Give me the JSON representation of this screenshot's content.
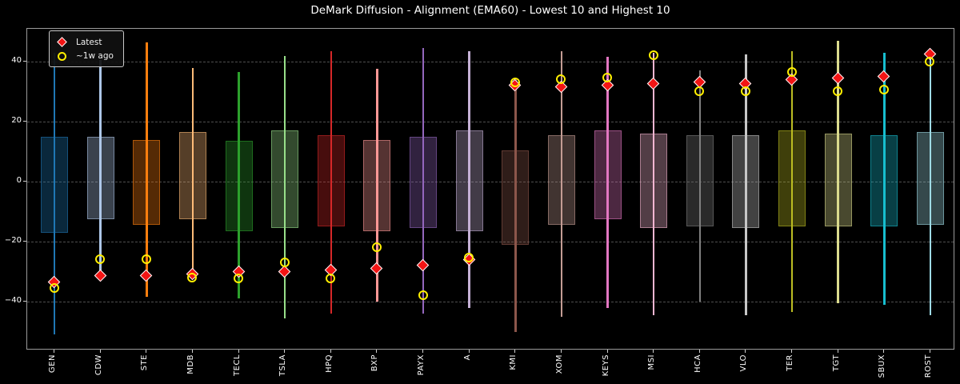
{
  "title": "DeMark Diffusion - Alignment (EMA60) - Lowest 10 and Highest 10",
  "legend": {
    "items": [
      {
        "label": "Latest",
        "marker": "red-diamond",
        "color": "#f31414"
      },
      {
        "label": "~1w ago",
        "marker": "yellow-open-circle",
        "color": "#ffef00"
      }
    ]
  },
  "colors": {
    "background": "#000000",
    "text": "#ffffff",
    "grid": "#4f4f4f",
    "spine": "#9b9b9b",
    "latest_marker": "#f31414",
    "week_ago_marker": "#ffef00"
  },
  "chart_data": {
    "type": "box",
    "subtype": "range-box-with-whiskers-and-scatter-markers",
    "title": "DeMark Diffusion - Alignment (EMA60) - Lowest 10 and Highest 10",
    "xlabel": "",
    "ylabel": "",
    "ylim": [
      -56,
      51
    ],
    "yticks": [
      40,
      20,
      0,
      -20,
      -40
    ],
    "ytick_labels": [
      "40",
      "20",
      "0",
      "−20",
      "−40"
    ],
    "grid": true,
    "legend_position": "upper-left",
    "series": [
      {
        "name": "Latest",
        "marker": "red-diamond"
      },
      {
        "name": "~1w ago",
        "marker": "yellow-open-circle"
      }
    ],
    "tickers": [
      {
        "symbol": "GEN",
        "color": "#1f77b4",
        "whisker_high": 43,
        "whisker_low": -51,
        "box_high": 15,
        "box_low": -17,
        "latest": -33.5,
        "week_ago": -35.5
      },
      {
        "symbol": "CDW",
        "color": "#aec7e8",
        "whisker_high": 40.5,
        "whisker_low": -31.5,
        "box_high": 15,
        "box_low": -12.5,
        "latest": -31.5,
        "week_ago": -26
      },
      {
        "symbol": "STE",
        "color": "#ff7f0e",
        "whisker_high": 46.5,
        "whisker_low": -38.5,
        "box_high": 14,
        "box_low": -14.5,
        "latest": -31.5,
        "week_ago": -26
      },
      {
        "symbol": "MDB",
        "color": "#ffbb78",
        "whisker_high": 38,
        "whisker_low": -32.5,
        "box_high": 16.5,
        "box_low": -12.5,
        "latest": -31,
        "week_ago": -32
      },
      {
        "symbol": "TECL",
        "color": "#2ca02c",
        "whisker_high": 36.5,
        "whisker_low": -39,
        "box_high": 13.5,
        "box_low": -16.5,
        "latest": -30,
        "week_ago": -32.5
      },
      {
        "symbol": "TSLA",
        "color": "#98df8a",
        "whisker_high": 42,
        "whisker_low": -45.5,
        "box_high": 17,
        "box_low": -15.5,
        "latest": -30,
        "week_ago": -27
      },
      {
        "symbol": "HPQ",
        "color": "#d62728",
        "whisker_high": 43.5,
        "whisker_low": -44,
        "box_high": 15.5,
        "box_low": -15,
        "latest": -29.5,
        "week_ago": -32.5
      },
      {
        "symbol": "BXP",
        "color": "#ff9896",
        "whisker_high": 37.5,
        "whisker_low": -40,
        "box_high": 14,
        "box_low": -16.5,
        "latest": -29,
        "week_ago": -22
      },
      {
        "symbol": "PAYX",
        "color": "#9467bd",
        "whisker_high": 44.5,
        "whisker_low": -44,
        "box_high": 15,
        "box_low": -15.5,
        "latest": -28,
        "week_ago": -38
      },
      {
        "symbol": "A",
        "color": "#c5b0d5",
        "whisker_high": 43.5,
        "whisker_low": -42,
        "box_high": 17,
        "box_low": -16.5,
        "latest": -26,
        "week_ago": -25.5
      },
      {
        "symbol": "KMI",
        "color": "#8c564b",
        "whisker_high": 34.5,
        "whisker_low": -50,
        "box_high": 10.5,
        "box_low": -21,
        "latest": 32,
        "week_ago": 33
      },
      {
        "symbol": "XOM",
        "color": "#c49c94",
        "whisker_high": 43.5,
        "whisker_low": -45,
        "box_high": 15.5,
        "box_low": -14.5,
        "latest": 31.5,
        "week_ago": 34
      },
      {
        "symbol": "KEYS",
        "color": "#e377c2",
        "whisker_high": 41.5,
        "whisker_low": -42,
        "box_high": 17,
        "box_low": -12.5,
        "latest": 32,
        "week_ago": 34.5
      },
      {
        "symbol": "MSI",
        "color": "#f7b6d2",
        "whisker_high": 43,
        "whisker_low": -44.5,
        "box_high": 16,
        "box_low": -15.5,
        "latest": 32.5,
        "week_ago": 42
      },
      {
        "symbol": "HCA",
        "color": "#7f7f7f",
        "whisker_high": 37,
        "whisker_low": -40,
        "box_high": 15.5,
        "box_low": -15,
        "latest": 33,
        "week_ago": 30
      },
      {
        "symbol": "VLO",
        "color": "#c7c7c7",
        "whisker_high": 42.5,
        "whisker_low": -44.5,
        "box_high": 15.5,
        "box_low": -15.5,
        "latest": 32.5,
        "week_ago": 30
      },
      {
        "symbol": "TER",
        "color": "#bcbd22",
        "whisker_high": 43.5,
        "whisker_low": -43.5,
        "box_high": 17,
        "box_low": -15,
        "latest": 34,
        "week_ago": 36.5
      },
      {
        "symbol": "TGT",
        "color": "#dbdb8d",
        "whisker_high": 47,
        "whisker_low": -40.5,
        "box_high": 16,
        "box_low": -15,
        "latest": 34.5,
        "week_ago": 30
      },
      {
        "symbol": "SBUX",
        "color": "#17becf",
        "whisker_high": 43,
        "whisker_low": -41,
        "box_high": 15.5,
        "box_low": -15,
        "latest": 35,
        "week_ago": 30.5
      },
      {
        "symbol": "ROST",
        "color": "#9edae5",
        "whisker_high": 42.5,
        "whisker_low": -44.5,
        "box_high": 16.5,
        "box_low": -14.5,
        "latest": 42.5,
        "week_ago": 40
      }
    ]
  }
}
